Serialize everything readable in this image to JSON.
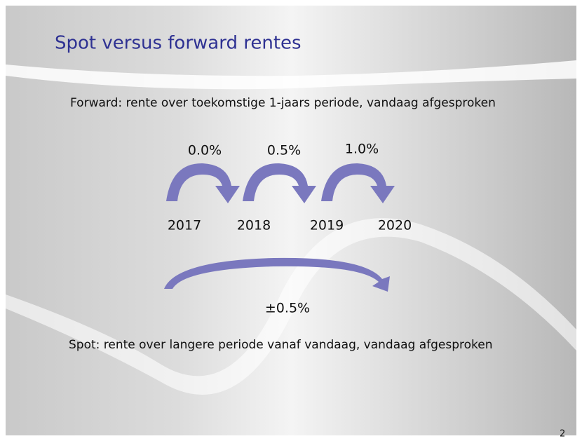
{
  "title": "Spot versus forward rentes",
  "forward_text": "Forward: rente over toekomstige 1-jaars periode, vandaag afgesproken",
  "forward_rates": [
    "0.0%",
    "0.5%",
    "1.0%"
  ],
  "years": [
    "2017",
    "2018",
    "2019",
    "2020"
  ],
  "spot_rate": "±0.5%",
  "spot_text": "Spot: rente over langere periode vanaf vandaag, vandaag afgesproken",
  "page_number": "2"
}
